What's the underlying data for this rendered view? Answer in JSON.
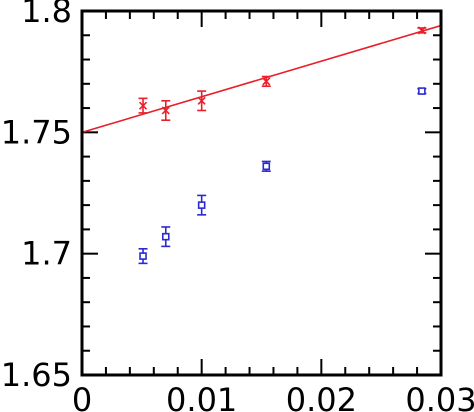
{
  "chart_data": {
    "type": "scatter",
    "title": "",
    "xlabel": "",
    "ylabel": "",
    "xlim": [
      0,
      0.03
    ],
    "ylim": [
      1.65,
      1.8
    ],
    "x_ticks": [
      0,
      0.01,
      0.02,
      0.03
    ],
    "x_tick_labels": [
      "0",
      "0.01",
      "0.02",
      "0.03"
    ],
    "y_ticks": [
      1.65,
      1.7,
      1.75,
      1.8
    ],
    "y_tick_labels": [
      "1.65",
      "1.7",
      "1.75",
      "1.8"
    ],
    "grid": false,
    "series": [
      {
        "marker": "x",
        "color": "#e8202a",
        "points": [
          {
            "x": 0.0051,
            "y": 1.761,
            "err": 0.003
          },
          {
            "x": 0.007,
            "y": 1.759,
            "err": 0.004
          },
          {
            "x": 0.01,
            "y": 1.763,
            "err": 0.004
          },
          {
            "x": 0.0154,
            "y": 1.771,
            "err": 0.002
          },
          {
            "x": 0.0284,
            "y": 1.792,
            "err": 0.001
          }
        ]
      },
      {
        "marker": "square",
        "color": "#2a2ad0",
        "points": [
          {
            "x": 0.0051,
            "y": 1.699,
            "err": 0.003
          },
          {
            "x": 0.007,
            "y": 1.707,
            "err": 0.004
          },
          {
            "x": 0.01,
            "y": 1.72,
            "err": 0.004
          },
          {
            "x": 0.0154,
            "y": 1.736,
            "err": 0.002
          },
          {
            "x": 0.0284,
            "y": 1.767,
            "err": 0.001
          }
        ]
      }
    ],
    "fit_line": {
      "color": "#e8202a",
      "x": [
        0,
        0.03
      ],
      "y": [
        1.75,
        1.794
      ]
    }
  }
}
